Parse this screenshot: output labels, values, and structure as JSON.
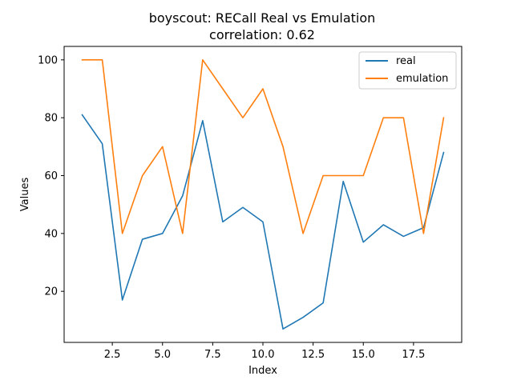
{
  "chart_data": {
    "type": "line",
    "title": "boyscout: RECall Real vs Emulation",
    "subtitle": "correlation: 0.62",
    "xlabel": "Index",
    "ylabel": "Values",
    "xlim": [
      0.1,
      19.9
    ],
    "ylim": [
      2.35,
      104.65
    ],
    "x_ticks": [
      2.5,
      5.0,
      7.5,
      10.0,
      12.5,
      15.0,
      17.5
    ],
    "x_tick_labels": [
      "2.5",
      "5.0",
      "7.5",
      "10.0",
      "12.5",
      "15.0",
      "17.5"
    ],
    "y_ticks": [
      20,
      40,
      60,
      80,
      100
    ],
    "y_tick_labels": [
      "20",
      "40",
      "60",
      "80",
      "100"
    ],
    "grid": false,
    "legend_position": "top-right",
    "x": [
      1,
      2,
      3,
      4,
      5,
      6,
      7,
      8,
      9,
      10,
      11,
      12,
      13,
      14,
      15,
      16,
      17,
      18,
      19
    ],
    "series": [
      {
        "name": "real",
        "color": "#1f77b4",
        "values": [
          81,
          71,
          17,
          38,
          40,
          53,
          79,
          44,
          49,
          44,
          7,
          11,
          16,
          58,
          37,
          43,
          39,
          42,
          68
        ]
      },
      {
        "name": "emulation",
        "color": "#ff7f0e",
        "values": [
          100,
          100,
          40,
          60,
          70,
          40,
          100,
          90,
          80,
          90,
          70,
          40,
          60,
          60,
          60,
          80,
          80,
          40,
          80
        ]
      }
    ]
  }
}
